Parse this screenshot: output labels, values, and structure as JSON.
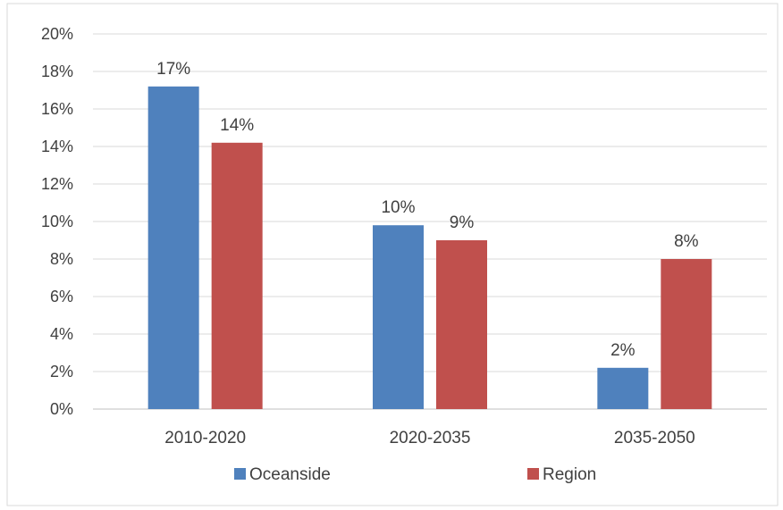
{
  "chart_data": {
    "type": "bar",
    "categories": [
      "2010-2020",
      "2020-2035",
      "2035-2050"
    ],
    "series": [
      {
        "name": "Oceanside",
        "values": [
          17.2,
          9.8,
          2.2
        ],
        "labels": [
          "17%",
          "10%",
          "2%"
        ],
        "color": "#4f81bd"
      },
      {
        "name": "Region",
        "values": [
          14.2,
          9.0,
          8.0
        ],
        "labels": [
          "14%",
          "9%",
          "8%"
        ],
        "color": "#c0504d"
      }
    ],
    "ylim": [
      0,
      20
    ],
    "yticks": [
      0,
      2,
      4,
      6,
      8,
      10,
      12,
      14,
      16,
      18,
      20
    ],
    "ytick_labels": [
      "0%",
      "2%",
      "4%",
      "6%",
      "8%",
      "10%",
      "12%",
      "14%",
      "16%",
      "18%",
      "20%"
    ],
    "grid": true,
    "legend_position": "bottom"
  }
}
